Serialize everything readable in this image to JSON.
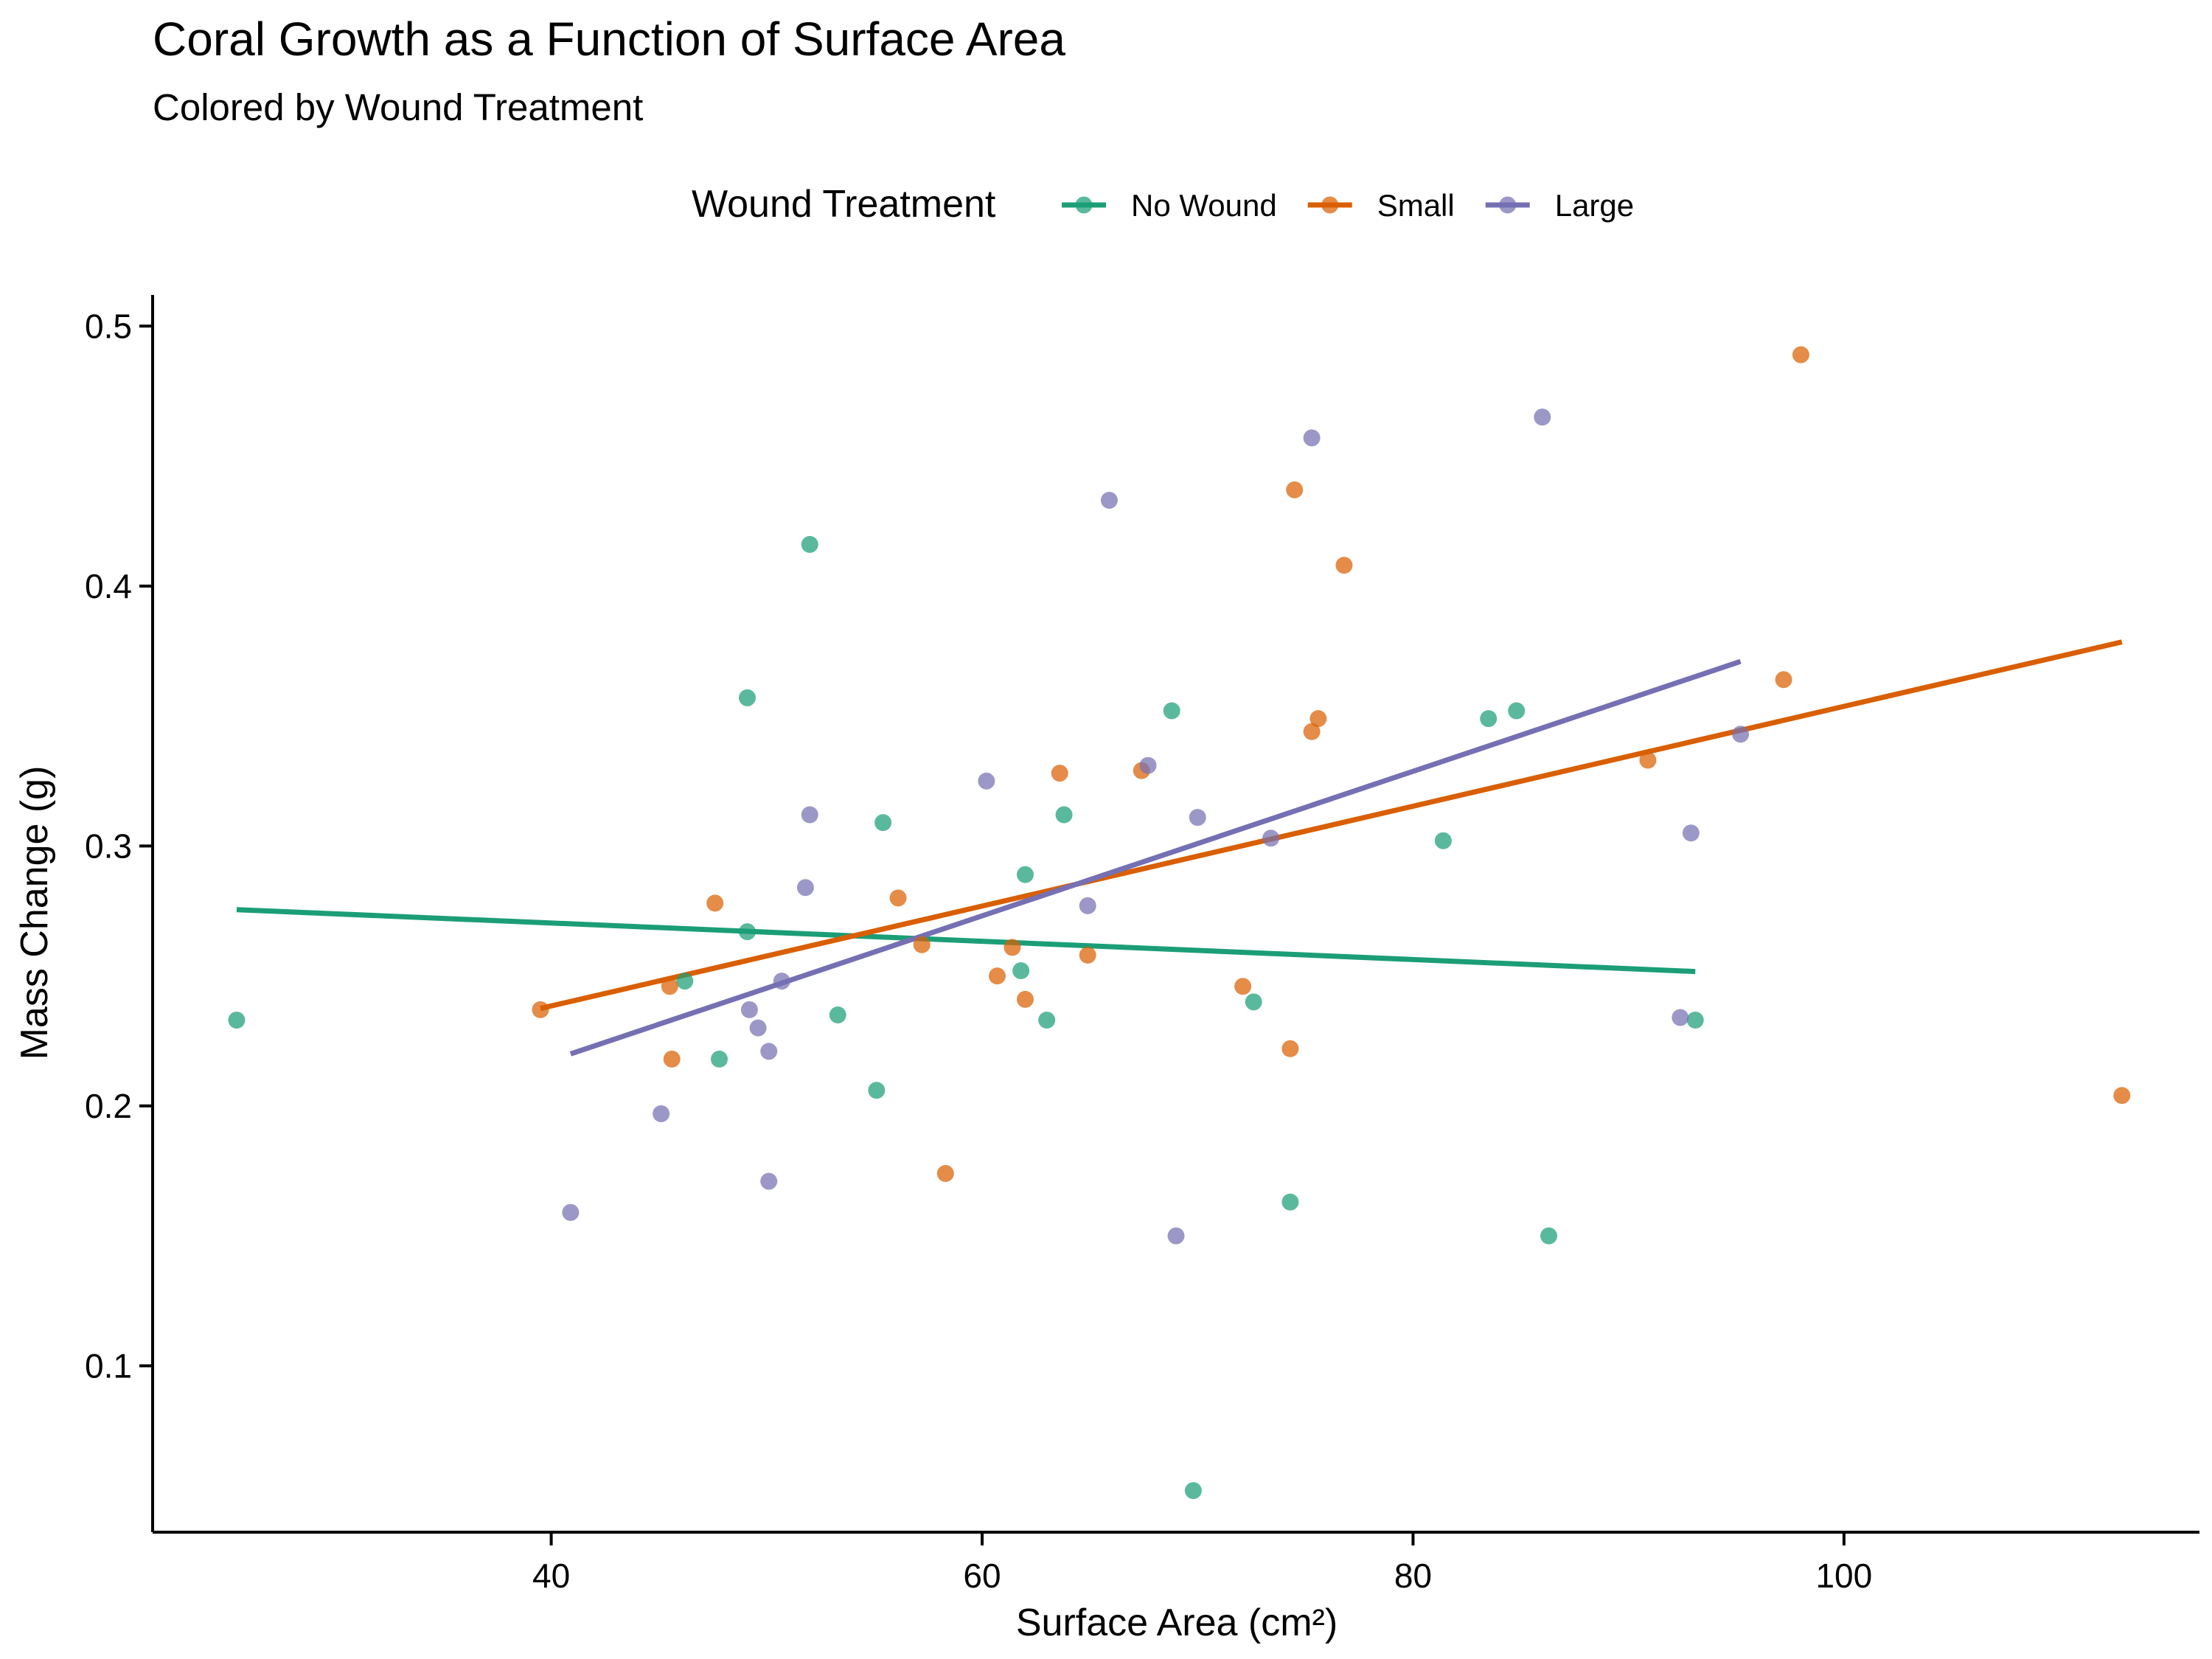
{
  "chart_data": {
    "type": "scatter",
    "title": "Coral Growth as a Function of Surface Area",
    "subtitle": "Colored by Wound Treatment",
    "xlabel": "Surface Area (cm²)",
    "ylabel": "Mass Change (g)",
    "xlim": [
      21.5,
      116.5
    ],
    "ylim": [
      0.036,
      0.512
    ],
    "xticks": [
      40,
      60,
      80,
      100
    ],
    "yticks": [
      0.1,
      0.2,
      0.3,
      0.4,
      0.5
    ],
    "xtick_labels": [
      "40",
      "60",
      "80",
      "100"
    ],
    "ytick_labels": [
      "0.1",
      "0.2",
      "0.3",
      "0.4",
      "0.5"
    ],
    "grid": false,
    "legend": {
      "title": "Wound Treatment",
      "position": "top"
    },
    "series": [
      {
        "name": "No Wound",
        "color": "#1b9e77",
        "points": [
          [
            25.4,
            0.233
          ],
          [
            46.2,
            0.248
          ],
          [
            47.8,
            0.218
          ],
          [
            49.1,
            0.357
          ],
          [
            49.1,
            0.267
          ],
          [
            52.0,
            0.416
          ],
          [
            53.3,
            0.235
          ],
          [
            55.1,
            0.206
          ],
          [
            55.4,
            0.309
          ],
          [
            61.8,
            0.252
          ],
          [
            62.0,
            0.289
          ],
          [
            63.0,
            0.233
          ],
          [
            63.8,
            0.312
          ],
          [
            68.8,
            0.352
          ],
          [
            69.8,
            0.052
          ],
          [
            72.6,
            0.24
          ],
          [
            74.3,
            0.163
          ],
          [
            81.4,
            0.302
          ],
          [
            83.5,
            0.349
          ],
          [
            84.8,
            0.352
          ],
          [
            86.3,
            0.15
          ],
          [
            93.1,
            0.233
          ]
        ],
        "trend": {
          "x": [
            25.4,
            93.1
          ],
          "y": [
            0.2755,
            0.2517
          ]
        }
      },
      {
        "name": "Small",
        "color": "#d95f02",
        "points": [
          [
            39.5,
            0.237
          ],
          [
            45.5,
            0.246
          ],
          [
            45.6,
            0.218
          ],
          [
            47.6,
            0.278
          ],
          [
            56.1,
            0.28
          ],
          [
            57.2,
            0.262
          ],
          [
            58.3,
            0.174
          ],
          [
            60.7,
            0.25
          ],
          [
            61.4,
            0.261
          ],
          [
            62.0,
            0.241
          ],
          [
            63.6,
            0.328
          ],
          [
            64.9,
            0.258
          ],
          [
            67.4,
            0.329
          ],
          [
            72.1,
            0.246
          ],
          [
            74.3,
            0.222
          ],
          [
            74.5,
            0.437
          ],
          [
            75.3,
            0.344
          ],
          [
            75.6,
            0.349
          ],
          [
            76.8,
            0.408
          ],
          [
            90.9,
            0.333
          ],
          [
            97.2,
            0.364
          ],
          [
            98.0,
            0.489
          ],
          [
            112.9,
            0.204
          ]
        ],
        "trend": {
          "x": [
            39.5,
            112.9
          ],
          "y": [
            0.2375,
            0.3785
          ]
        }
      },
      {
        "name": "Large",
        "color": "#7570b3",
        "points": [
          [
            40.9,
            0.159
          ],
          [
            45.1,
            0.197
          ],
          [
            49.2,
            0.237
          ],
          [
            49.6,
            0.23
          ],
          [
            50.1,
            0.221
          ],
          [
            50.1,
            0.171
          ],
          [
            50.7,
            0.248
          ],
          [
            51.8,
            0.284
          ],
          [
            52.0,
            0.312
          ],
          [
            60.2,
            0.325
          ],
          [
            64.9,
            0.277
          ],
          [
            65.9,
            0.433
          ],
          [
            67.7,
            0.331
          ],
          [
            69.0,
            0.15
          ],
          [
            70.0,
            0.311
          ],
          [
            73.4,
            0.303
          ],
          [
            75.3,
            0.457
          ],
          [
            86.0,
            0.465
          ],
          [
            92.4,
            0.234
          ],
          [
            92.9,
            0.305
          ],
          [
            95.2,
            0.343
          ]
        ],
        "trend": {
          "x": [
            40.9,
            95.2
          ],
          "y": [
            0.22,
            0.371
          ]
        }
      }
    ]
  }
}
